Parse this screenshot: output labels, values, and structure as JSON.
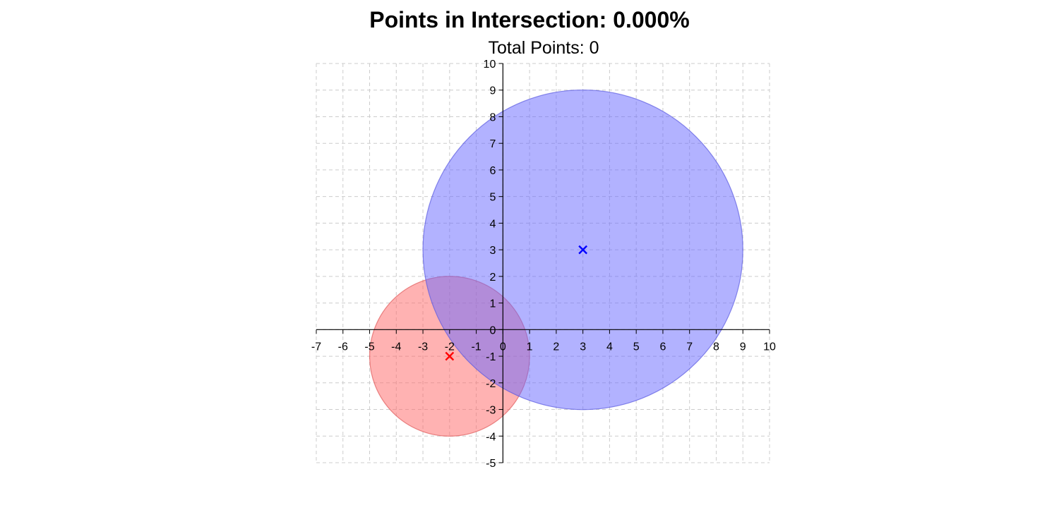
{
  "header": {
    "title": "Points in Intersection: 0.000%",
    "subtitle": "Total Points: 0"
  },
  "chart_data": {
    "type": "scatter",
    "title": "Points in Intersection: 0.000%",
    "subtitle": "Total Points: 0",
    "xlabel": "",
    "ylabel": "",
    "xlim": [
      -7,
      10
    ],
    "ylim": [
      -5,
      10
    ],
    "x_ticks": [
      -7,
      -6,
      -5,
      -4,
      -3,
      -2,
      -1,
      0,
      1,
      2,
      3,
      4,
      5,
      6,
      7,
      8,
      9,
      10
    ],
    "y_ticks": [
      -5,
      -4,
      -3,
      -2,
      -1,
      0,
      1,
      2,
      3,
      4,
      5,
      6,
      7,
      8,
      9,
      10
    ],
    "grid": true,
    "circles": [
      {
        "center": [
          -2,
          -1
        ],
        "radius": 3,
        "fill": "#ff6666",
        "stroke": "#e05a5a",
        "marker_color": "#ff0000"
      },
      {
        "center": [
          3,
          3
        ],
        "radius": 6,
        "fill": "#6666ff",
        "stroke": "#5a5ae0",
        "marker_color": "#0000ff"
      }
    ],
    "points": []
  }
}
